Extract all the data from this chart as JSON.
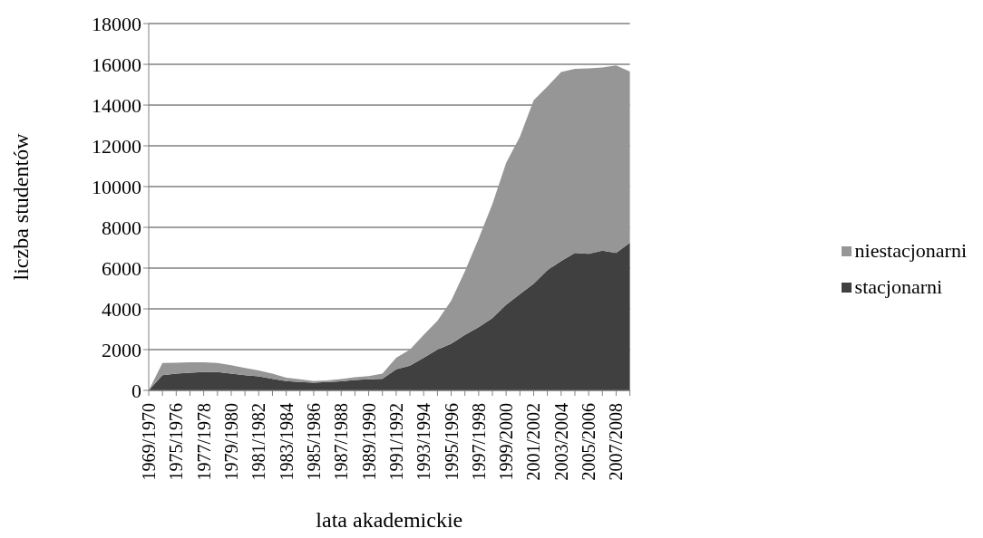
{
  "chart_data": {
    "type": "area",
    "stacked": true,
    "xlabel": "lata akademickie",
    "ylabel": "liczba studentów",
    "categories": [
      "1969/1970",
      null,
      "1975/1976",
      null,
      "1977/1978",
      null,
      "1979/1980",
      null,
      "1981/1982",
      null,
      "1983/1984",
      null,
      "1985/1986",
      null,
      "1987/1988",
      null,
      "1989/1990",
      null,
      "1991/1992",
      null,
      "1993/1994",
      null,
      "1995/1996",
      null,
      "1997/1998",
      null,
      "1999/2000",
      null,
      "2001/2002",
      null,
      "2003/2004",
      null,
      "2005/2006",
      null,
      "2007/2008",
      null
    ],
    "series": [
      {
        "name": "stacjonarni",
        "color": "#404040",
        "values": [
          0,
          740,
          820,
          870,
          900,
          900,
          820,
          740,
          690,
          570,
          460,
          410,
          380,
          410,
          440,
          510,
          540,
          570,
          1030,
          1210,
          1600,
          2000,
          2290,
          2720,
          3100,
          3550,
          4200,
          4720,
          5230,
          5900,
          6340,
          6750,
          6700,
          6860,
          6750,
          7250
        ]
      },
      {
        "name": "niestacjonarni",
        "color": "#969696",
        "values": [
          0,
          600,
          540,
          510,
          480,
          440,
          410,
          360,
          290,
          250,
          160,
          130,
          80,
          80,
          120,
          130,
          160,
          250,
          570,
          790,
          1120,
          1410,
          2110,
          3130,
          4350,
          5600,
          6970,
          7730,
          9000,
          9010,
          9280,
          9030,
          9100,
          8990,
          9200,
          8400
        ]
      }
    ],
    "ylim": [
      0,
      18000
    ],
    "yticks": [
      0,
      2000,
      4000,
      6000,
      8000,
      10000,
      12000,
      14000,
      16000,
      18000
    ],
    "grid": "y",
    "legend": "right"
  }
}
